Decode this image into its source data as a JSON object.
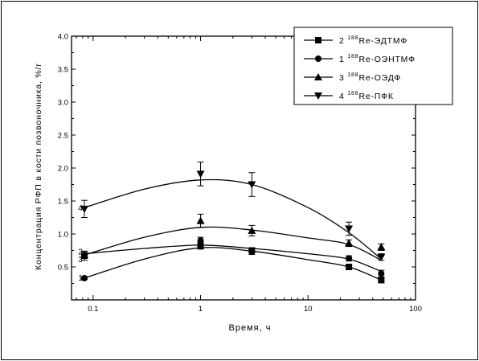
{
  "chart_data": {
    "type": "line",
    "title": "",
    "xlabel": "Время, ч",
    "ylabel": "Концентрация РФП в кости позвоночника, %/г",
    "xscale": "log",
    "xlim": [
      0.063,
      100
    ],
    "ylim": [
      0.0,
      4.0
    ],
    "xticks": [
      0.1,
      1,
      10,
      100
    ],
    "xtick_labels": [
      "0.1",
      "1",
      "10",
      "100"
    ],
    "yticks": [
      0.5,
      1.0,
      1.5,
      2.0,
      2.5,
      3.0,
      3.5,
      4.0
    ],
    "ytick_labels": [
      "0.5",
      "1.0",
      "1.5",
      "2.0",
      "2.5",
      "3.0",
      "3.5",
      "4.0"
    ],
    "legend_position": "top-right",
    "series": [
      {
        "id": "2",
        "name": "2 ¹⁸⁸Re-ЭДТМФ",
        "legend_label": "2 ",
        "legend_sup": "188",
        "legend_rest": "Re-ЭДТМФ",
        "marker": "square",
        "x": [
          0.083,
          1,
          3,
          24,
          48
        ],
        "y": [
          0.67,
          0.82,
          0.75,
          0.5,
          0.3
        ],
        "err": [
          0.07,
          0.05,
          0.03,
          0.04,
          0.04
        ],
        "fit_x": [
          0.083,
          0.3,
          1,
          3,
          10,
          24,
          48
        ],
        "fit_y": [
          0.7,
          0.78,
          0.83,
          0.78,
          0.7,
          0.62,
          0.43
        ]
      },
      {
        "id": "1",
        "name": "1 ¹⁸⁸Re-ОЭНТМФ",
        "legend_label": "1 ",
        "legend_sup": "188",
        "legend_rest": "Re-ОЭНТМФ",
        "marker": "circle",
        "x": [
          0.083,
          1,
          3,
          24,
          48
        ],
        "y": [
          0.33,
          0.9,
          0.73,
          0.63,
          0.4
        ],
        "err": [
          0.02,
          0.05,
          0.04,
          0.04,
          0.05
        ],
        "fit_x": [
          0.083,
          0.3,
          1,
          3,
          10,
          24,
          48
        ],
        "fit_y": [
          0.33,
          0.62,
          0.79,
          0.74,
          0.61,
          0.5,
          0.3
        ]
      },
      {
        "id": "3",
        "name": "3 ¹⁸⁸Re-ОЭДФ",
        "legend_label": "3 ",
        "legend_sup": "188",
        "legend_rest": "Re-ОЭДФ",
        "marker": "triangle-up",
        "x": [
          0.083,
          1,
          3,
          24,
          48
        ],
        "y": [
          0.68,
          1.2,
          1.05,
          0.86,
          0.8
        ],
        "err": [
          0.05,
          0.1,
          0.08,
          0.05,
          0.05
        ],
        "fit_x": [
          0.083,
          0.3,
          1,
          3,
          10,
          24,
          48
        ],
        "fit_y": [
          0.68,
          0.95,
          1.1,
          1.06,
          0.94,
          0.84,
          0.6
        ]
      },
      {
        "id": "4",
        "name": "4 ¹⁸⁸Re-ПФК",
        "legend_label": "4 ",
        "legend_sup": "188",
        "legend_rest": "Re-ПФК",
        "marker": "triangle-down",
        "x": [
          0.083,
          1,
          3,
          24,
          48
        ],
        "y": [
          1.38,
          1.91,
          1.75,
          1.08,
          0.65
        ],
        "err": [
          0.13,
          0.18,
          0.18,
          0.1,
          0.05
        ],
        "fit_x": [
          0.083,
          0.3,
          1,
          3,
          10,
          24,
          48
        ],
        "fit_y": [
          1.4,
          1.68,
          1.82,
          1.75,
          1.4,
          1.02,
          0.62
        ]
      }
    ],
    "curve_labels": [
      {
        "text": "4",
        "x": 0.08,
        "y": 1.4
      },
      {
        "text": "2",
        "x": 0.08,
        "y": 0.74
      },
      {
        "text": "3",
        "x": 0.08,
        "y": 0.62
      },
      {
        "text": "1",
        "x": 0.08,
        "y": 0.34
      }
    ]
  }
}
